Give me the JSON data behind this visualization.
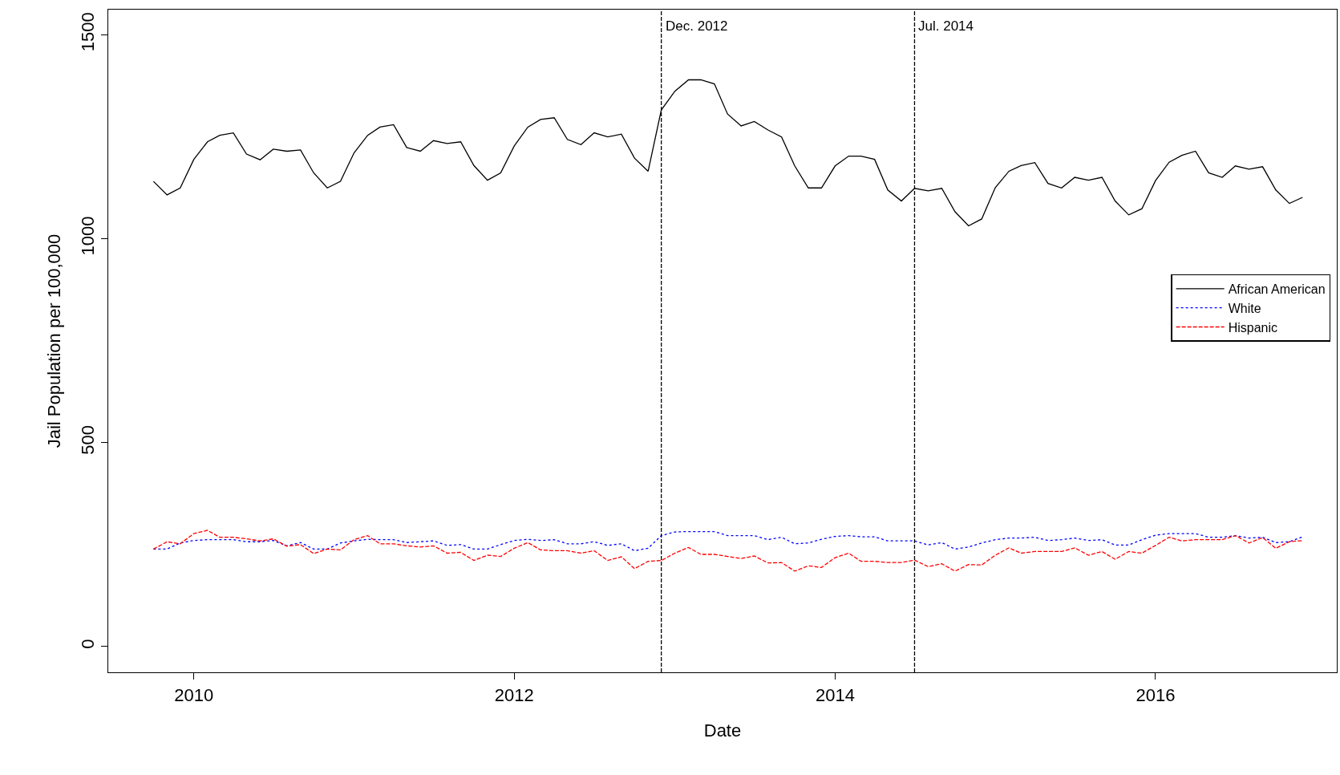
{
  "chart_data": {
    "type": "line",
    "xlabel": "Date",
    "ylabel": "Jail Population per 100,000",
    "x": [
      "2009-10",
      "2009-11",
      "2009-12",
      "2010-01",
      "2010-02",
      "2010-03",
      "2010-04",
      "2010-05",
      "2010-06",
      "2010-07",
      "2010-08",
      "2010-09",
      "2010-10",
      "2010-11",
      "2010-12",
      "2011-01",
      "2011-02",
      "2011-03",
      "2011-04",
      "2011-05",
      "2011-06",
      "2011-07",
      "2011-08",
      "2011-09",
      "2011-10",
      "2011-11",
      "2011-12",
      "2012-01",
      "2012-02",
      "2012-03",
      "2012-04",
      "2012-05",
      "2012-06",
      "2012-07",
      "2012-08",
      "2012-09",
      "2012-10",
      "2012-11",
      "2012-12",
      "2013-01",
      "2013-02",
      "2013-03",
      "2013-04",
      "2013-05",
      "2013-06",
      "2013-07",
      "2013-08",
      "2013-09",
      "2013-10",
      "2013-11",
      "2013-12",
      "2014-01",
      "2014-02",
      "2014-03",
      "2014-04",
      "2014-05",
      "2014-06",
      "2014-07",
      "2014-08",
      "2014-09",
      "2014-10",
      "2014-11",
      "2014-12",
      "2015-01",
      "2015-02",
      "2015-03",
      "2015-04",
      "2015-05",
      "2015-06",
      "2015-07",
      "2015-08",
      "2015-09",
      "2015-10",
      "2015-11",
      "2015-12",
      "2016-01",
      "2016-02",
      "2016-03",
      "2016-04",
      "2016-05",
      "2016-06",
      "2016-07",
      "2016-08",
      "2016-09",
      "2016-10",
      "2016-11",
      "2016-12"
    ],
    "series": [
      {
        "name": "African American",
        "color": "#000000",
        "line_style": "solid",
        "values": [
          1140,
          1107,
          1124,
          1194,
          1237,
          1253,
          1259,
          1207,
          1193,
          1219,
          1214,
          1217,
          1161,
          1124,
          1140,
          1210,
          1253,
          1273,
          1279,
          1223,
          1214,
          1240,
          1233,
          1237,
          1179,
          1143,
          1161,
          1227,
          1273,
          1292,
          1296,
          1243,
          1230,
          1259,
          1249,
          1256,
          1197,
          1165,
          1315,
          1361,
          1389,
          1389,
          1379,
          1305,
          1276,
          1287,
          1266,
          1249,
          1178,
          1124,
          1124,
          1178,
          1202,
          1202,
          1194,
          1119,
          1092,
          1123,
          1117,
          1123,
          1066,
          1031,
          1048,
          1125,
          1165,
          1179,
          1186,
          1135,
          1124,
          1150,
          1143,
          1150,
          1092,
          1058,
          1073,
          1142,
          1187,
          1204,
          1214,
          1161,
          1150,
          1178,
          1170,
          1176,
          1119,
          1086,
          1101
        ]
      },
      {
        "name": "White",
        "color": "#0000ff",
        "line_style": "dotted",
        "values": [
          239,
          239,
          254,
          260,
          262,
          262,
          262,
          257,
          257,
          260,
          247,
          255,
          239,
          239,
          254,
          259,
          263,
          262,
          262,
          255,
          257,
          259,
          248,
          250,
          239,
          239,
          250,
          260,
          263,
          260,
          262,
          252,
          252,
          257,
          248,
          252,
          235,
          241,
          272,
          281,
          282,
          282,
          282,
          272,
          272,
          272,
          262,
          268,
          252,
          254,
          263,
          270,
          272,
          269,
          269,
          259,
          259,
          259,
          249,
          255,
          239,
          244,
          254,
          262,
          266,
          266,
          268,
          260,
          262,
          266,
          260,
          262,
          249,
          249,
          262,
          273,
          277,
          277,
          277,
          268,
          268,
          272,
          266,
          268,
          255,
          257,
          269
        ]
      },
      {
        "name": "Hispanic",
        "color": "#ff0000",
        "line_style": "dashed",
        "values": [
          239,
          257,
          252,
          277,
          285,
          268,
          268,
          264,
          259,
          264,
          246,
          250,
          228,
          239,
          237,
          262,
          272,
          252,
          252,
          247,
          244,
          247,
          229,
          231,
          211,
          224,
          221,
          241,
          255,
          237,
          235,
          235,
          229,
          235,
          211,
          220,
          191,
          209,
          211,
          229,
          243,
          226,
          226,
          221,
          216,
          222,
          205,
          206,
          185,
          198,
          194,
          218,
          229,
          209,
          209,
          206,
          206,
          212,
          196,
          203,
          185,
          201,
          200,
          224,
          242,
          229,
          233,
          233,
          233,
          242,
          224,
          233,
          214,
          233,
          229,
          248,
          268,
          259,
          262,
          262,
          262,
          272,
          254,
          267,
          241,
          257,
          260
        ]
      }
    ],
    "xlim": [
      "2009-06-20",
      "2017-02-17"
    ],
    "xticks": [
      {
        "value": "2010-01",
        "label": "2010"
      },
      {
        "value": "2012-01",
        "label": "2012"
      },
      {
        "value": "2014-01",
        "label": "2014"
      },
      {
        "value": "2016-01",
        "label": "2016"
      }
    ],
    "ylim": [
      -63,
      1561
    ],
    "yticks": [
      0,
      500,
      1000,
      1500
    ],
    "ref_lines": [
      {
        "axis": "x",
        "value": "2012-12",
        "label": "Dec. 2012",
        "color": "#000000",
        "line_style": "dashed"
      },
      {
        "axis": "x",
        "value": "2014-07",
        "label": "Jul. 2014",
        "color": "#000000",
        "line_style": "dashed"
      }
    ],
    "grid": false,
    "legend": "right",
    "marker": "none"
  }
}
